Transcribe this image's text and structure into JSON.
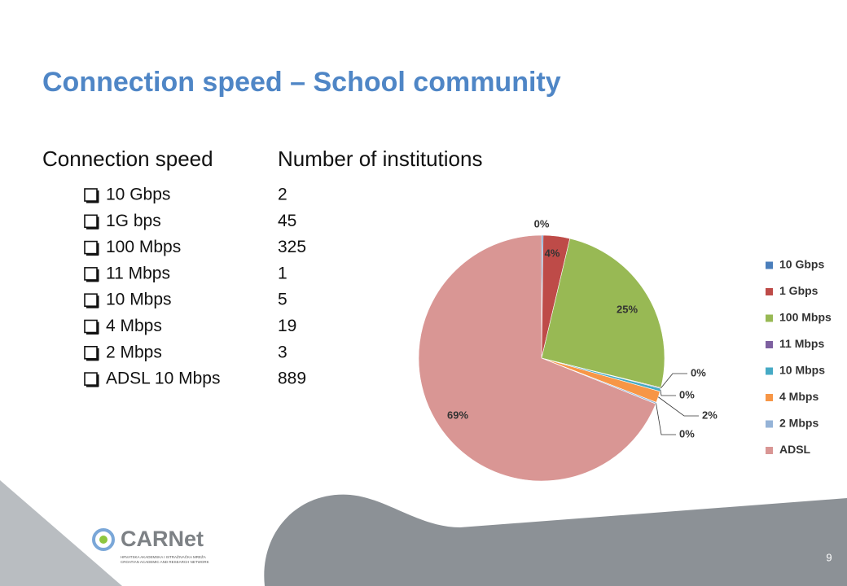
{
  "slide": {
    "title": "Connection speed – School community",
    "page_number": "9",
    "logo": {
      "name": "CARNet",
      "line1": "HRVATSKA AKADEMSKA I ISTRAŽIVAČKA MREŽA",
      "line2": "CROATIAN ACADEMIC AND RESEARCH NETWORK"
    }
  },
  "table": {
    "header": [
      "Connection speed",
      "Number of institutions"
    ],
    "rows": [
      [
        "10 Gbps",
        "2"
      ],
      [
        "1G bps",
        "45"
      ],
      [
        "100 Mbps",
        "325"
      ],
      [
        "11 Mbps",
        "1"
      ],
      [
        "10 Mbps",
        "5"
      ],
      [
        "4 Mbps",
        "19"
      ],
      [
        "2 Mbps",
        "3"
      ],
      [
        "ADSL 10 Mbps",
        "889"
      ]
    ]
  },
  "chart_data": {
    "type": "pie",
    "categories": [
      "10 Gbps",
      "1 Gbps",
      "100 Mbps",
      "11 Mbps",
      "10 Mbps",
      "4 Mbps",
      "2 Mbps",
      "ADSL"
    ],
    "values": [
      0.2,
      3.5,
      25.2,
      0.1,
      0.4,
      1.5,
      0.2,
      69
    ],
    "value_labels": [
      "0%",
      "4%",
      "25%",
      "0%",
      "0%",
      "2%",
      "0%",
      "69%"
    ],
    "colors": [
      "#4a7ebb",
      "#be4b48",
      "#98b954",
      "#7d60a0",
      "#46aac5",
      "#f79646",
      "#95b3d7",
      "#d99694"
    ],
    "legend": "right"
  }
}
